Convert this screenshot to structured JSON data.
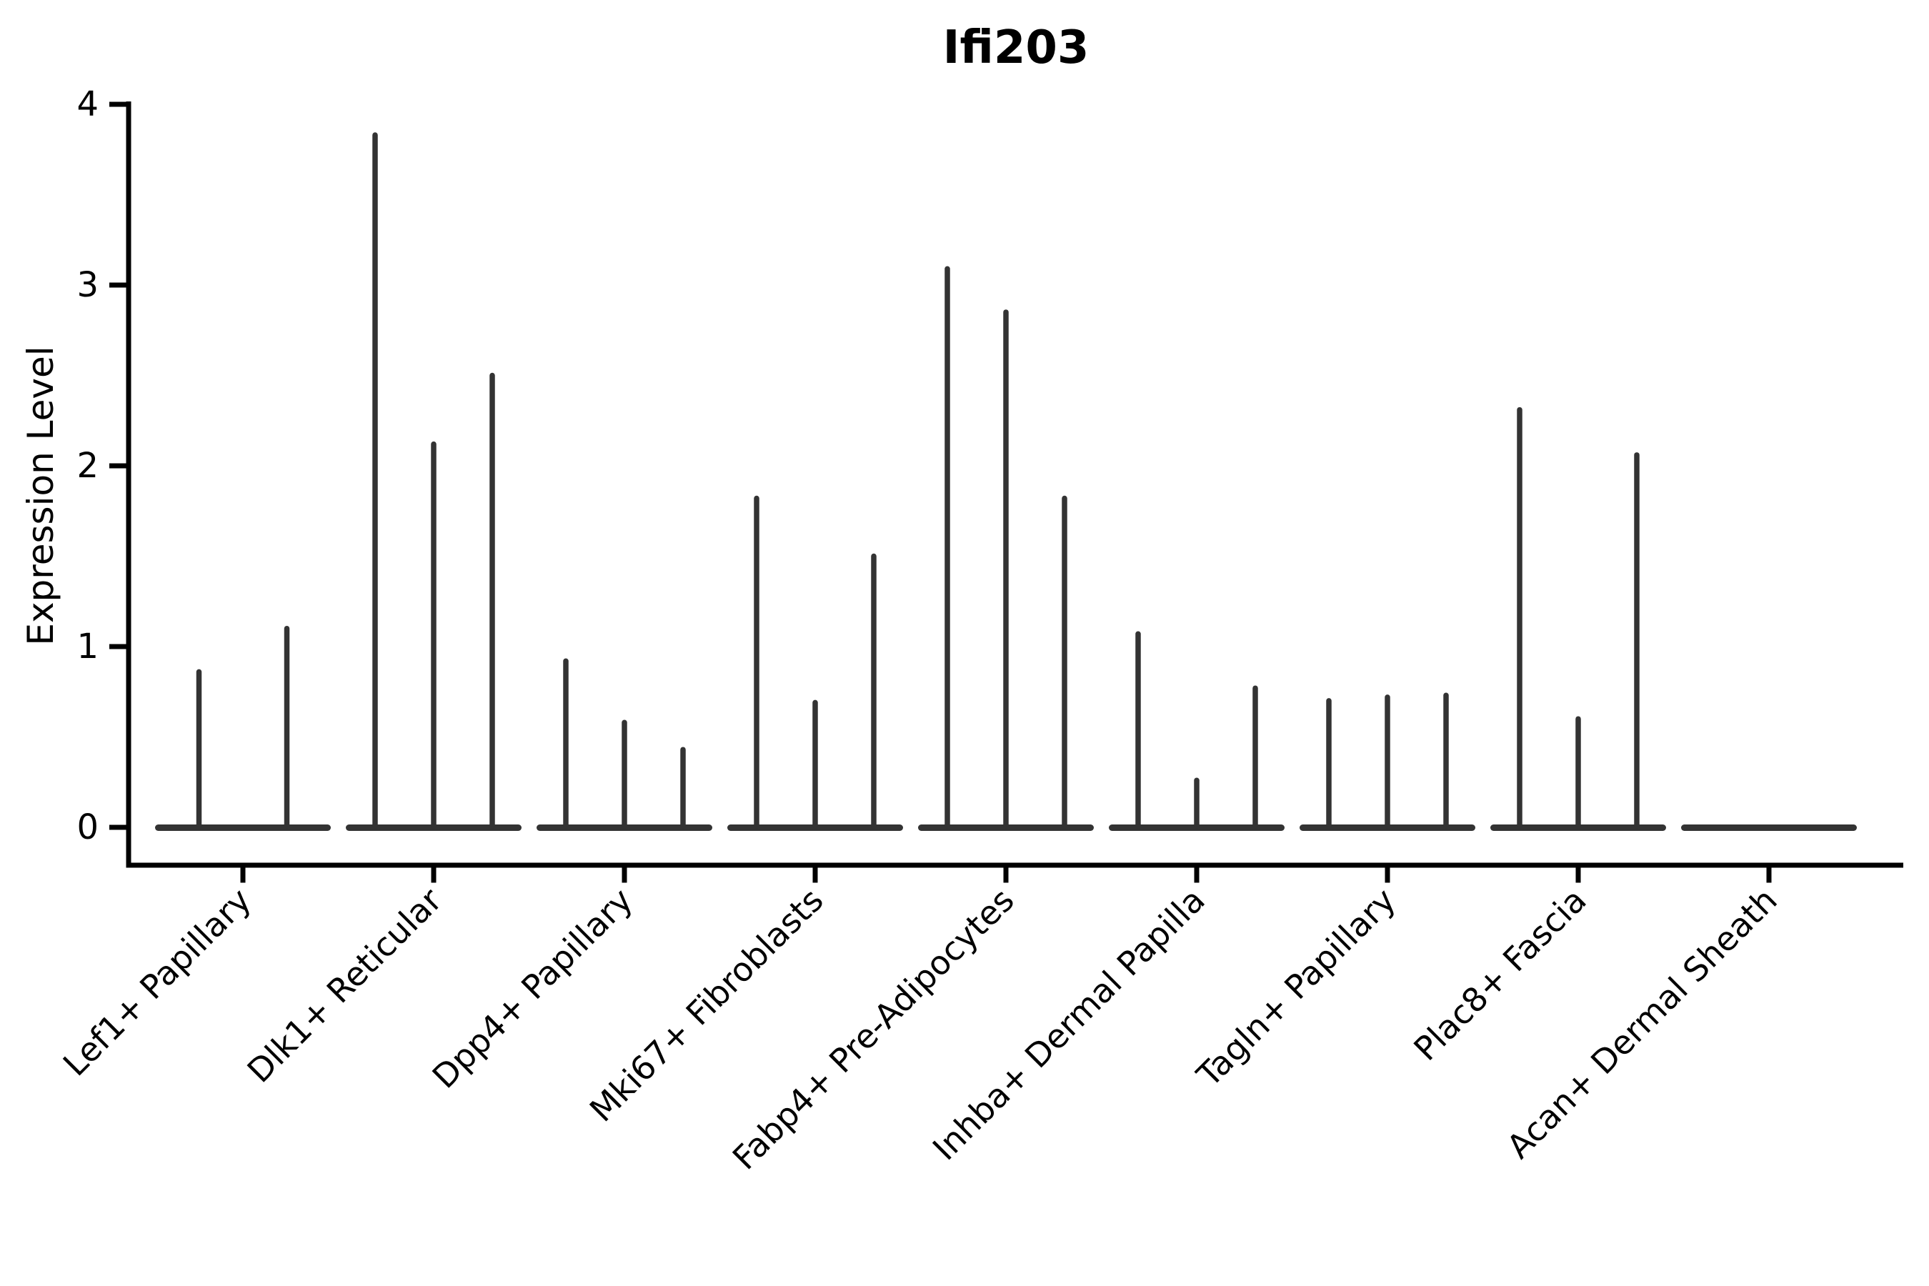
{
  "figure": {
    "title": "Ifi203",
    "y_axis_label": "Expression Level"
  },
  "chart_data": {
    "type": "violin",
    "title": "Ifi203",
    "xlabel": "",
    "ylabel": "Expression Level",
    "ylim": [
      0,
      4
    ],
    "yticks": [
      "0",
      "1",
      "2",
      "3",
      "4"
    ],
    "grid": false,
    "legend": false,
    "categories": [
      "Lef1+ Papillary",
      "Dlk1+ Reticular",
      "Dpp4+ Papillary",
      "Mki67+ Fibroblasts",
      "Fabp4+ Pre-Adipocytes",
      "Inhba+ Dermal Papilla",
      "Tagln+ Papillary",
      "Plac8+ Fascia",
      "Acan+ Dermal Sheath"
    ],
    "groups": [
      {
        "label": "Lef1+ Papillary",
        "violin_peak_values": [
          0.86,
          1.1
        ]
      },
      {
        "label": "Dlk1+ Reticular",
        "violin_peak_values": [
          3.83,
          2.12,
          2.5
        ]
      },
      {
        "label": "Dpp4+ Papillary",
        "violin_peak_values": [
          0.92,
          0.58,
          0.43
        ]
      },
      {
        "label": "Mki67+ Fibroblasts",
        "violin_peak_values": [
          1.82,
          0.69,
          1.5
        ]
      },
      {
        "label": "Fabp4+ Pre-Adipocytes",
        "violin_peak_values": [
          3.09,
          2.85,
          1.82
        ]
      },
      {
        "label": "Inhba+ Dermal Papilla",
        "violin_peak_values": [
          1.07,
          0.26,
          0.77
        ]
      },
      {
        "label": "Tagln+ Papillary",
        "violin_peak_values": [
          0.7,
          0.72,
          0.73
        ]
      },
      {
        "label": "Plac8+ Fascia",
        "violin_peak_values": [
          2.31,
          0.6,
          2.06
        ]
      },
      {
        "label": "Acan+ Dermal Sheath",
        "violin_peak_values": []
      }
    ],
    "colors": {
      "violin": "#333333",
      "axis": "#000000",
      "background": "#ffffff"
    }
  }
}
